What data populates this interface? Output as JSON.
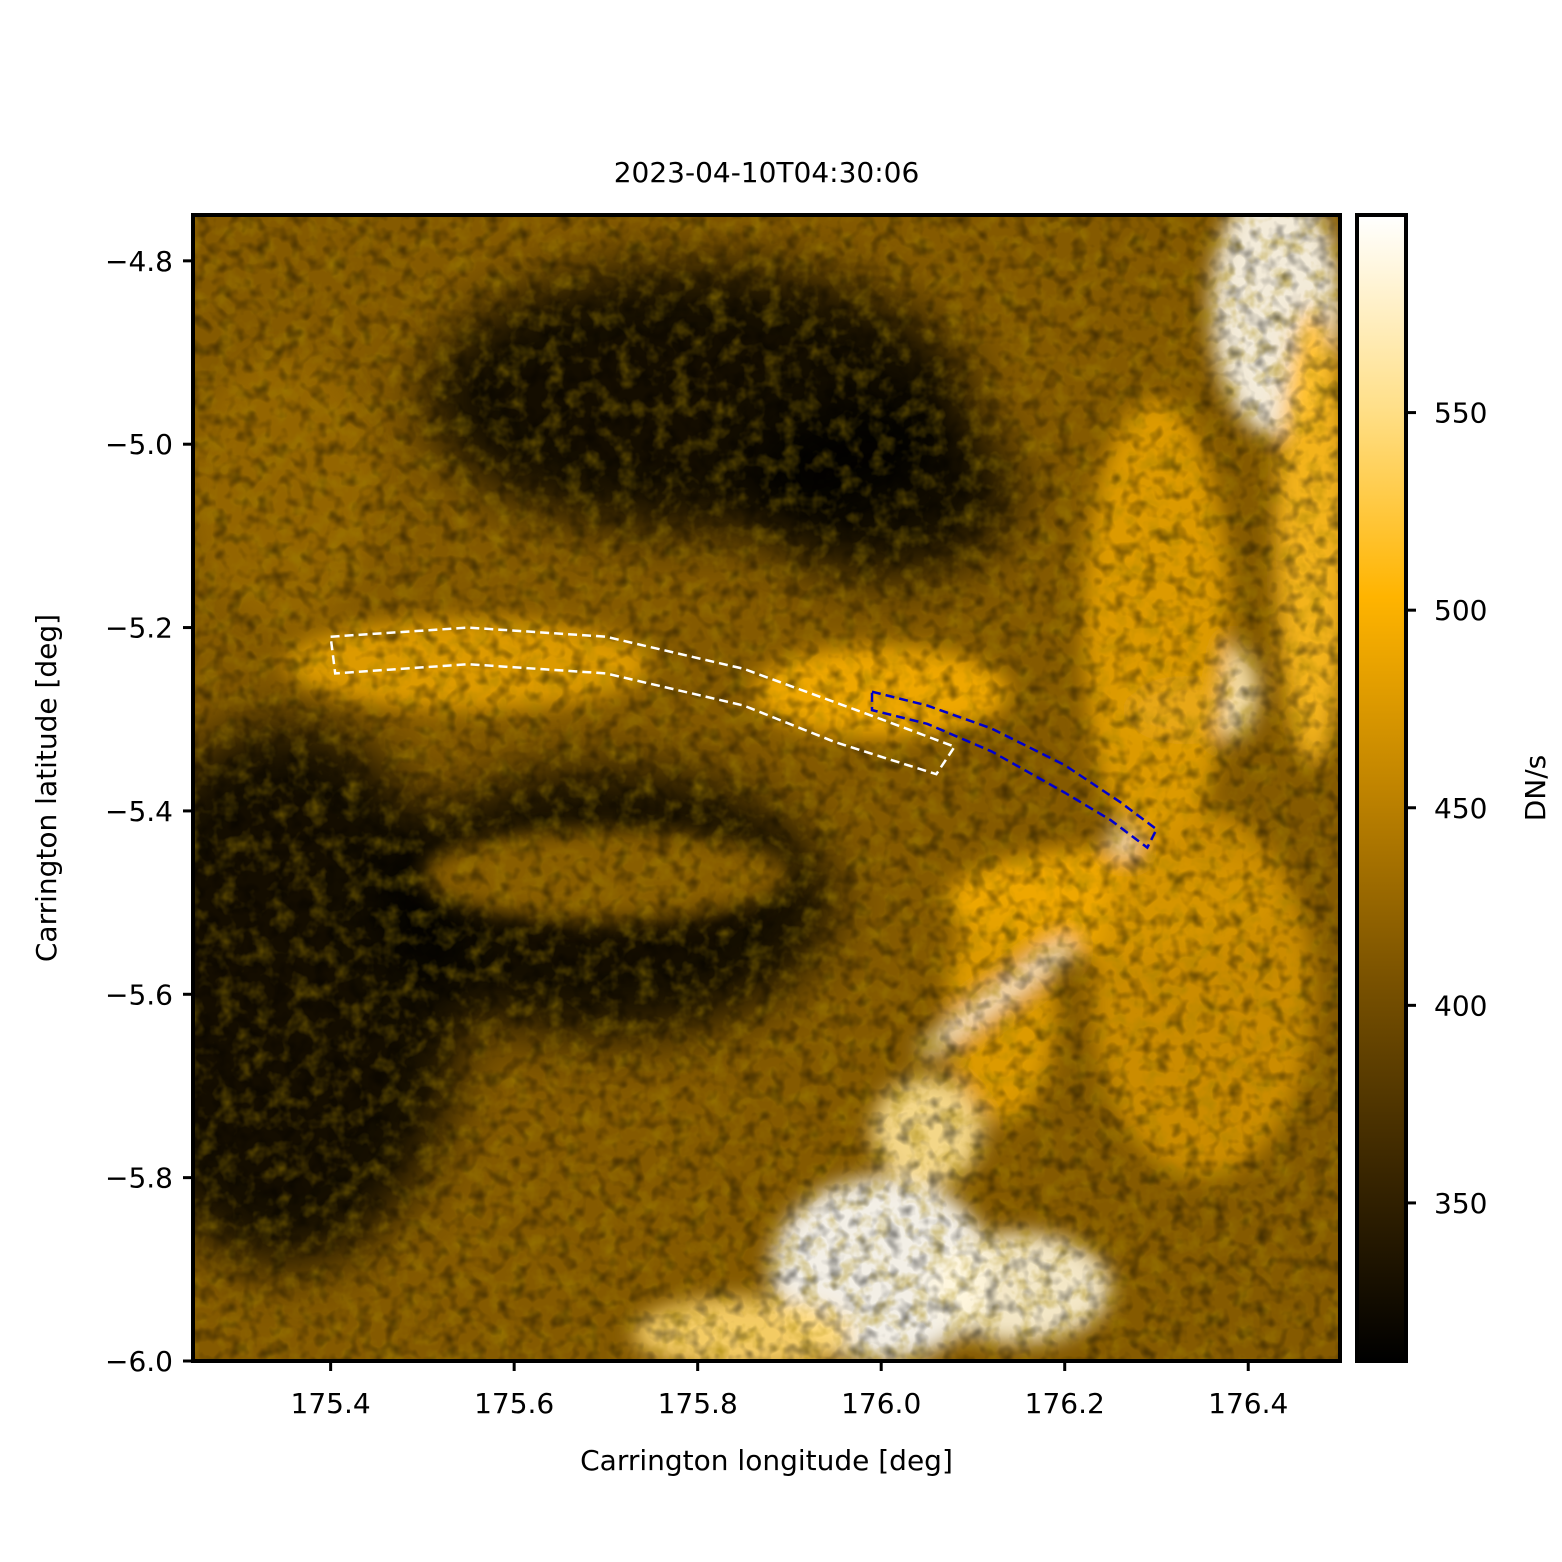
{
  "chart_data": {
    "type": "heatmap",
    "title": "2023-04-10T04:30:06",
    "xlabel": "Carrington longitude [deg]",
    "ylabel": "Carrington latitude [deg]",
    "xlim": [
      175.25,
      176.5
    ],
    "ylim": [
      -6.0,
      -4.75
    ],
    "xticks": [
      175.4,
      175.6,
      175.8,
      176.0,
      176.2,
      176.4
    ],
    "xtick_labels": [
      "175.4",
      "175.6",
      "175.8",
      "176.0",
      "176.2",
      "176.4"
    ],
    "yticks": [
      -4.8,
      -5.0,
      -5.2,
      -5.4,
      -5.6,
      -5.8,
      -6.0
    ],
    "ytick_labels": [
      "−4.8",
      "−5.0",
      "−5.2",
      "−5.4",
      "−5.6",
      "−5.8",
      "−6.0"
    ],
    "grid": false,
    "colorbar": {
      "label": "DN/s",
      "range": [
        310,
        600
      ],
      "ticks": [
        350,
        400,
        450,
        500,
        550
      ],
      "tick_labels": [
        "350",
        "400",
        "450",
        "500",
        "550"
      ],
      "colormap": [
        "#000000",
        "#3a2600",
        "#7a5200",
        "#c08400",
        "#ffb400",
        "#ffe08a",
        "#ffffff"
      ]
    },
    "bright_features": [
      {
        "lon": 176.33,
        "lat": -5.29,
        "rx": 0.06,
        "ry": 0.03,
        "level": 0.95
      },
      {
        "lon": 176.38,
        "lat": -5.27,
        "rx": 0.03,
        "ry": 0.05,
        "level": 0.9
      },
      {
        "lon": 176.43,
        "lat": -4.85,
        "rx": 0.07,
        "ry": 0.14,
        "level": 0.98
      },
      {
        "lon": 176.47,
        "lat": -5.1,
        "rx": 0.04,
        "ry": 0.25,
        "level": 0.7
      },
      {
        "lon": 176.0,
        "lat": -5.9,
        "rx": 0.12,
        "ry": 0.1,
        "level": 1.0
      },
      {
        "lon": 176.15,
        "lat": -5.92,
        "rx": 0.1,
        "ry": 0.06,
        "level": 0.95
      },
      {
        "lon": 176.05,
        "lat": -5.75,
        "rx": 0.06,
        "ry": 0.06,
        "level": 0.85
      },
      {
        "lon": 175.85,
        "lat": -5.97,
        "rx": 0.12,
        "ry": 0.04,
        "level": 0.8
      },
      {
        "lon": 176.25,
        "lat": -5.5,
        "rx": 0.18,
        "ry": 0.06,
        "level": 0.65
      },
      {
        "lon": 176.28,
        "lat": -5.43,
        "rx": 0.03,
        "ry": 0.02,
        "level": 0.95
      },
      {
        "lon": 176.0,
        "lat": -5.27,
        "rx": 0.14,
        "ry": 0.05,
        "level": 0.65
      },
      {
        "lon": 175.55,
        "lat": -5.24,
        "rx": 0.2,
        "ry": 0.05,
        "level": 0.6
      },
      {
        "lon": 176.3,
        "lat": -5.2,
        "rx": 0.08,
        "ry": 0.25,
        "level": 0.6
      },
      {
        "lon": 176.35,
        "lat": -5.6,
        "rx": 0.12,
        "ry": 0.2,
        "level": 0.55
      },
      {
        "lon": 175.7,
        "lat": -5.47,
        "rx": 0.2,
        "ry": 0.05,
        "level": 0.4
      },
      {
        "lon": 175.35,
        "lat": -5.05,
        "rx": 0.1,
        "ry": 0.15,
        "level": 0.4
      },
      {
        "lon": 176.13,
        "lat": -5.62,
        "rx": 0.06,
        "ry": 0.12,
        "level": 0.6
      }
    ],
    "bright_streak": {
      "lon": [
        176.05,
        176.2
      ],
      "lat": [
        -5.66,
        -5.55
      ],
      "level": 0.95
    },
    "dark_regions": [
      {
        "lon": 175.35,
        "lat": -5.6,
        "rx": 0.2,
        "ry": 0.3
      },
      {
        "lon": 175.7,
        "lat": -5.5,
        "rx": 0.25,
        "ry": 0.15
      },
      {
        "lon": 175.8,
        "lat": -4.95,
        "rx": 0.3,
        "ry": 0.15
      },
      {
        "lon": 176.0,
        "lat": -5.05,
        "rx": 0.15,
        "ry": 0.1
      }
    ],
    "regions": [
      {
        "color": "#ffffff",
        "outer": [
          [
            175.4,
            -5.21
          ],
          [
            175.55,
            -5.2
          ],
          [
            175.7,
            -5.21
          ],
          [
            175.85,
            -5.245
          ],
          [
            176.0,
            -5.3
          ],
          [
            176.08,
            -5.33
          ]
        ],
        "inner": [
          [
            175.405,
            -5.25
          ],
          [
            175.55,
            -5.24
          ],
          [
            175.7,
            -5.25
          ],
          [
            175.85,
            -5.285
          ],
          [
            175.95,
            -5.325
          ],
          [
            176.06,
            -5.36
          ]
        ]
      },
      {
        "color": "#0000cc",
        "outer": [
          [
            175.99,
            -5.27
          ],
          [
            176.05,
            -5.285
          ],
          [
            176.12,
            -5.31
          ],
          [
            176.2,
            -5.35
          ],
          [
            176.26,
            -5.39
          ],
          [
            176.3,
            -5.42
          ]
        ],
        "inner": [
          [
            175.99,
            -5.29
          ],
          [
            176.05,
            -5.305
          ],
          [
            176.12,
            -5.335
          ],
          [
            176.2,
            -5.38
          ],
          [
            176.25,
            -5.41
          ],
          [
            176.29,
            -5.44
          ]
        ]
      }
    ]
  }
}
